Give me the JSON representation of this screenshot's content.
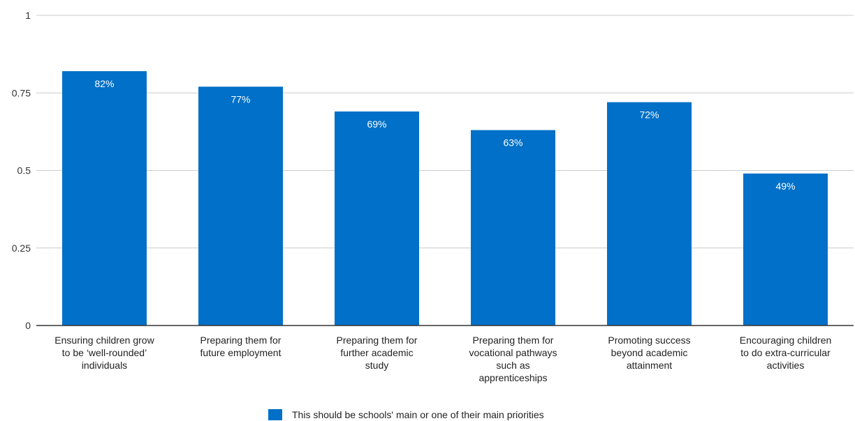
{
  "chart_data": {
    "type": "bar",
    "categories": [
      "Ensuring children grow to be ‘well-rounded’ individuals",
      "Preparing them for future employment",
      "Preparing them for further academic study",
      "Preparing them for vocational pathways such as apprenticeships",
      "Promoting success beyond academic attainment",
      "Encouraging children to do extra-curricular activities"
    ],
    "category_lines": [
      [
        "Ensuring children grow",
        "to be ‘well-rounded’",
        "individuals"
      ],
      [
        "Preparing them for",
        "future employment"
      ],
      [
        "Preparing them for",
        "further academic",
        "study"
      ],
      [
        "Preparing them for",
        "vocational pathways",
        "such as",
        "apprenticeships"
      ],
      [
        "Promoting success",
        "beyond academic",
        "attainment"
      ],
      [
        "Encouraging children",
        "to do extra-curricular",
        "activities"
      ]
    ],
    "series": [
      {
        "name": "This should be schools' main or one of their main priorities",
        "values": [
          0.82,
          0.77,
          0.69,
          0.63,
          0.72,
          0.49
        ],
        "value_labels": [
          "82%",
          "77%",
          "69%",
          "63%",
          "72%",
          "49%"
        ],
        "color": "#0070c8"
      }
    ],
    "ylim": [
      0,
      1
    ],
    "yticks": [
      0,
      0.25,
      0.5,
      0.75,
      1
    ],
    "ytick_labels": [
      "0",
      "0.25",
      "0.5",
      "0.75",
      "1"
    ],
    "grid": true,
    "grid_color": "#cccccc",
    "axis_color": "#333333",
    "legend_position": "bottom-center"
  }
}
